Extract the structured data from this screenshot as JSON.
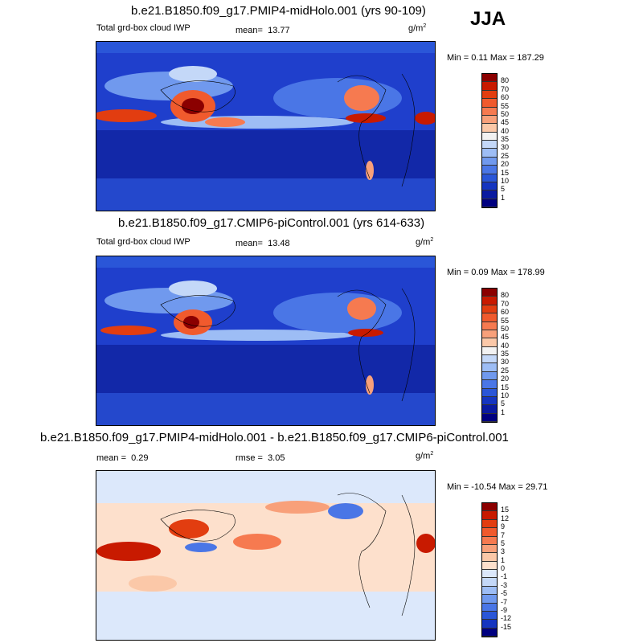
{
  "season": "JJA",
  "panels": [
    {
      "title": "b.e21.B1850.f09_g17.PMIP4-midHolo.001 (yrs 90-109)",
      "variable": "Total grd-box cloud IWP",
      "mean_label": "mean=",
      "mean_value": "13.77",
      "units": "g/m",
      "units_exp": "2",
      "minmax": "Min =  0.11 Max = 187.29"
    },
    {
      "title": "b.e21.B1850.f09_g17.CMIP6-piControl.001 (yrs 614-633)",
      "variable": "Total grd-box cloud IWP",
      "mean_label": "mean=",
      "mean_value": "13.48",
      "units": "g/m",
      "units_exp": "2",
      "minmax": "Min =  0.09 Max = 178.99"
    },
    {
      "title": "b.e21.B1850.f09_g17.PMIP4-midHolo.001 - b.e21.B1850.f09_g17.CMIP6-piControl.001",
      "mean_label": "mean =",
      "mean_value": "0.29",
      "rmse_label": "rmse =",
      "rmse_value": "3.05",
      "units": "g/m",
      "units_exp": "2",
      "minmax": "Min = -10.54 Max =  29.71"
    }
  ],
  "colorbar_abs": {
    "labels": [
      "80",
      "70",
      "60",
      "55",
      "50",
      "45",
      "40",
      "35",
      "30",
      "25",
      "20",
      "15",
      "10",
      "5",
      "1"
    ],
    "colors": [
      "#8b0000",
      "#c81a00",
      "#e23d10",
      "#f05a2d",
      "#f67a50",
      "#f8a07a",
      "#fbc8a8",
      "#f2f2f2",
      "#c4d8f8",
      "#9dbdf5",
      "#7099ee",
      "#4a76e6",
      "#2a56d8",
      "#1535c0",
      "#0a1aa0",
      "#000080"
    ]
  },
  "colorbar_diff": {
    "labels": [
      "15",
      "12",
      "9",
      "7",
      "5",
      "3",
      "1",
      "0",
      "-1",
      "-3",
      "-5",
      "-7",
      "-9",
      "-12",
      "-15"
    ],
    "colors": [
      "#8b0000",
      "#c81a00",
      "#e23d10",
      "#f05a2d",
      "#f67a50",
      "#f8a07a",
      "#fbc8a8",
      "#fde0cc",
      "#dce8fb",
      "#c4d8f8",
      "#9dbdf5",
      "#7099ee",
      "#4a76e6",
      "#2a56d8",
      "#1535c0",
      "#000080"
    ]
  }
}
